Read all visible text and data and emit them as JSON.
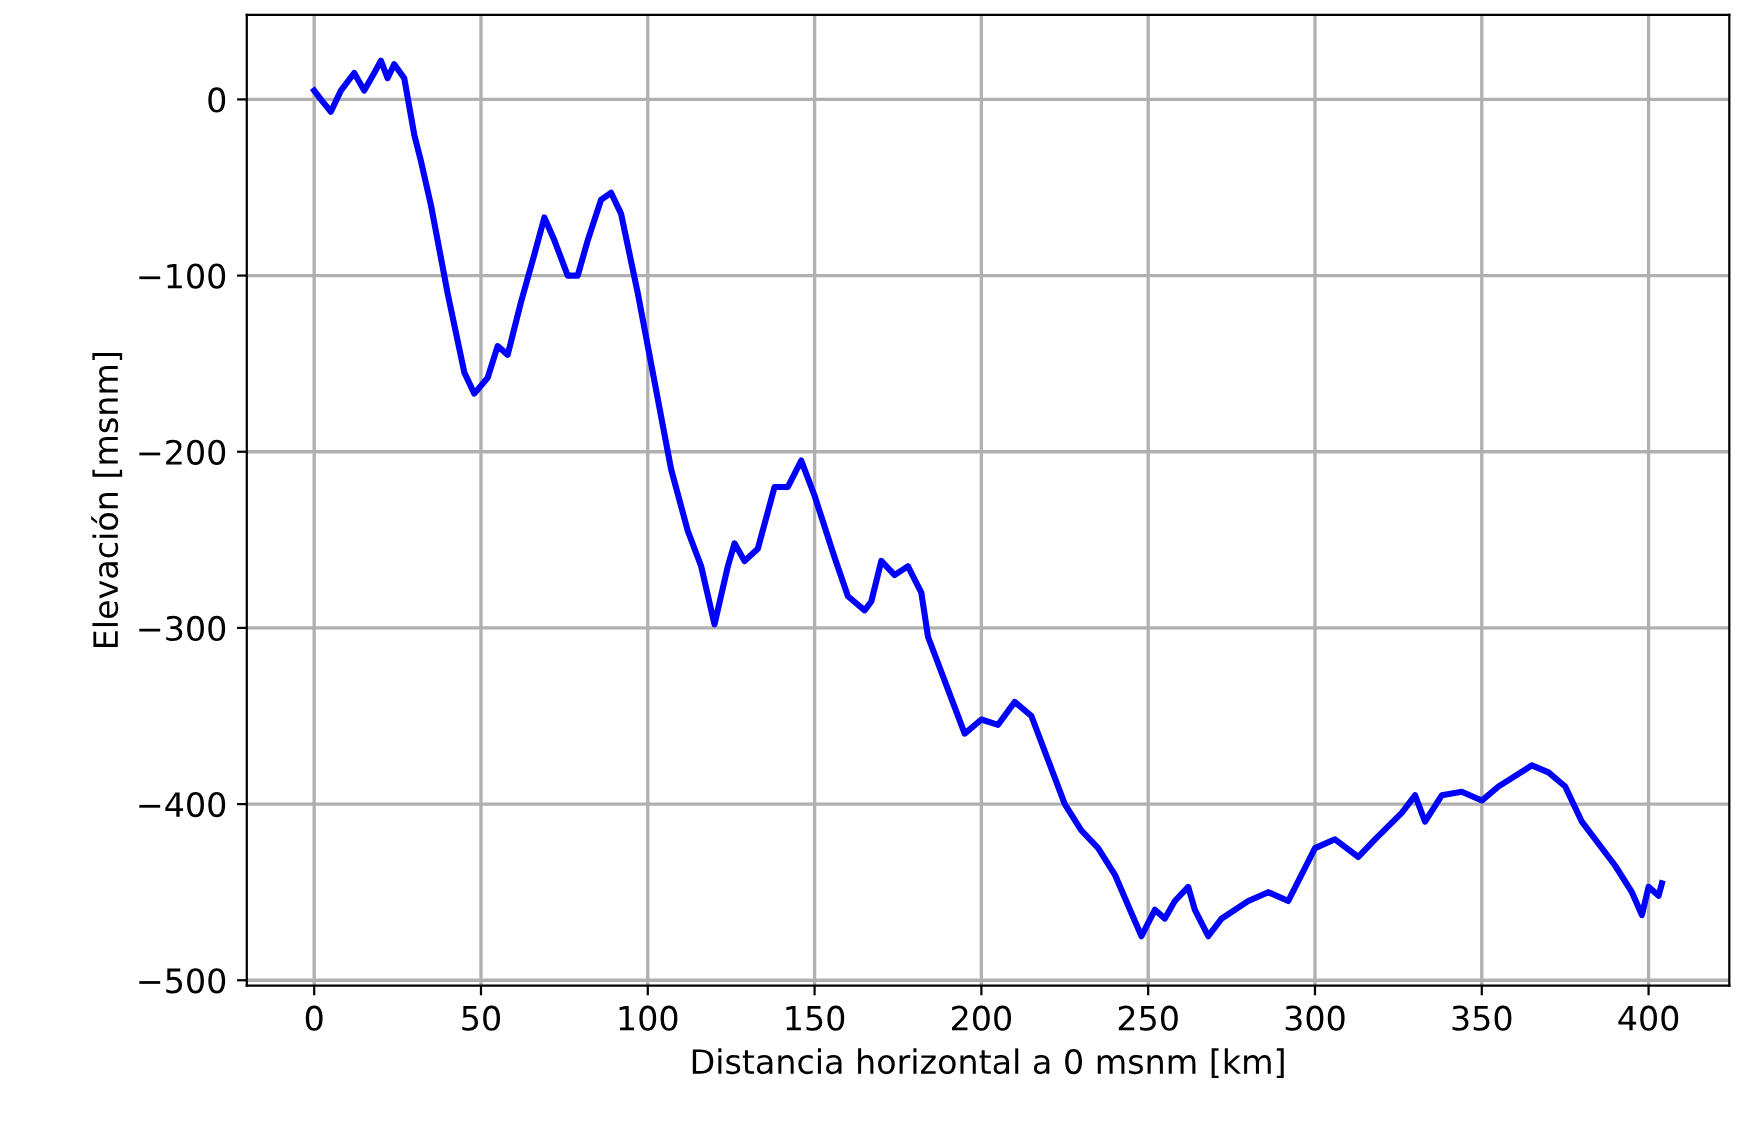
{
  "chart_data": {
    "type": "line",
    "xlabel": "Distancia horizontal a 0 msnm [km]",
    "ylabel": "Elevación [msnm]",
    "xlim": [
      -20.2,
      424.2
    ],
    "ylim": [
      -503,
      48
    ],
    "xticks": [
      0,
      50,
      100,
      150,
      200,
      250,
      300,
      350,
      400
    ],
    "yticks": [
      -500,
      -400,
      -300,
      -200,
      -100,
      0
    ],
    "grid": true,
    "series": [
      {
        "color": "#0000ff",
        "x": [
          0,
          2,
          5,
          8,
          12,
          15,
          18,
          20,
          22,
          24,
          27,
          30,
          32,
          35,
          40,
          45,
          48,
          52,
          55,
          58,
          62,
          66,
          69,
          72,
          76,
          79,
          82,
          86,
          89,
          92,
          97,
          102,
          107,
          112,
          116,
          120,
          124,
          126,
          129,
          133,
          138,
          142,
          146,
          150,
          156,
          160,
          165,
          167,
          170,
          174,
          178,
          182,
          184,
          190,
          195,
          200,
          205,
          210,
          215,
          220,
          225,
          230,
          235,
          240,
          245,
          248,
          252,
          255,
          258,
          262,
          264,
          268,
          272,
          280,
          286,
          292,
          300,
          306,
          313,
          318,
          326,
          330,
          333,
          338,
          344,
          350,
          355,
          365,
          370,
          375,
          380,
          390,
          395,
          398,
          400,
          403,
          404
        ],
        "values": [
          5,
          0,
          -7,
          5,
          15,
          5,
          15,
          22,
          12,
          20,
          12,
          -20,
          -35,
          -60,
          -110,
          -155,
          -167,
          -158,
          -140,
          -145,
          -115,
          -88,
          -67,
          -80,
          -100,
          -100,
          -80,
          -57,
          -53,
          -65,
          -110,
          -160,
          -210,
          -245,
          -265,
          -298,
          -265,
          -252,
          -262,
          -255,
          -220,
          -220,
          -205,
          -225,
          -260,
          -282,
          -290,
          -285,
          -262,
          -270,
          -265,
          -280,
          -305,
          -335,
          -360,
          -352,
          -355,
          -342,
          -350,
          -375,
          -400,
          -415,
          -425,
          -440,
          -462,
          -475,
          -460,
          -465,
          -455,
          -447,
          -460,
          -475,
          -465,
          -455,
          -450,
          -455,
          -425,
          -420,
          -430,
          -420,
          -405,
          -395,
          -410,
          -395,
          -393,
          -398,
          -390,
          -378,
          -382,
          -390,
          -410,
          -435,
          -450,
          -463,
          -447,
          -452,
          -445
        ]
      }
    ]
  }
}
